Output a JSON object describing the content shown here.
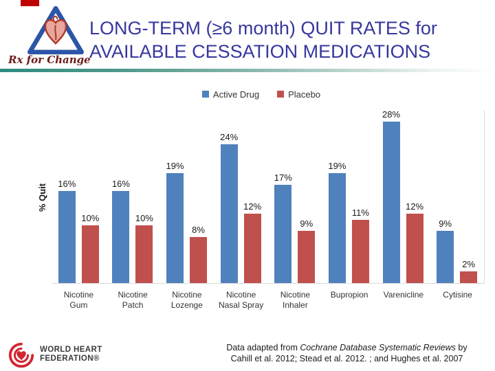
{
  "slide": {
    "accent_color": "#c00000",
    "title_line1": "LONG-TERM (≥6 month) QUIT RATES for",
    "title_line2": "AVAILABLE CESSATION MEDICATIONS",
    "title_color": "#37379e",
    "rx_logo_caption": "Rx for Change"
  },
  "chart_data": {
    "type": "bar",
    "title": "",
    "ylabel": "% Quit",
    "value_suffix": "%",
    "ylim": [
      0,
      30
    ],
    "grid": false,
    "legend_position": "top",
    "categories": [
      "Nicotine Gum",
      "Nicotine Patch",
      "Nicotine Lozenge",
      "Nicotine Nasal Spray",
      "Nicotine Inhaler",
      "Bupropion",
      "Varenicline",
      "Cytisine"
    ],
    "series": [
      {
        "name": "Active Drug",
        "color": "#4f81bd",
        "values": [
          16,
          16,
          19,
          24,
          17,
          19,
          28,
          9
        ]
      },
      {
        "name": "Placebo",
        "color": "#c0504d",
        "values": [
          10,
          10,
          8,
          12,
          9,
          11,
          12,
          2
        ]
      }
    ]
  },
  "footer": {
    "org_line1": "WORLD HEART",
    "org_line2": "FEDERATION®",
    "citation_prefix": "Data adapted from ",
    "citation_italic": "Cochrane Database Systematic Reviews",
    "citation_suffix": " by",
    "citation_line2": "Cahill et al. 2012; Stead et al. 2012. ; and Hughes et al. 2007"
  }
}
